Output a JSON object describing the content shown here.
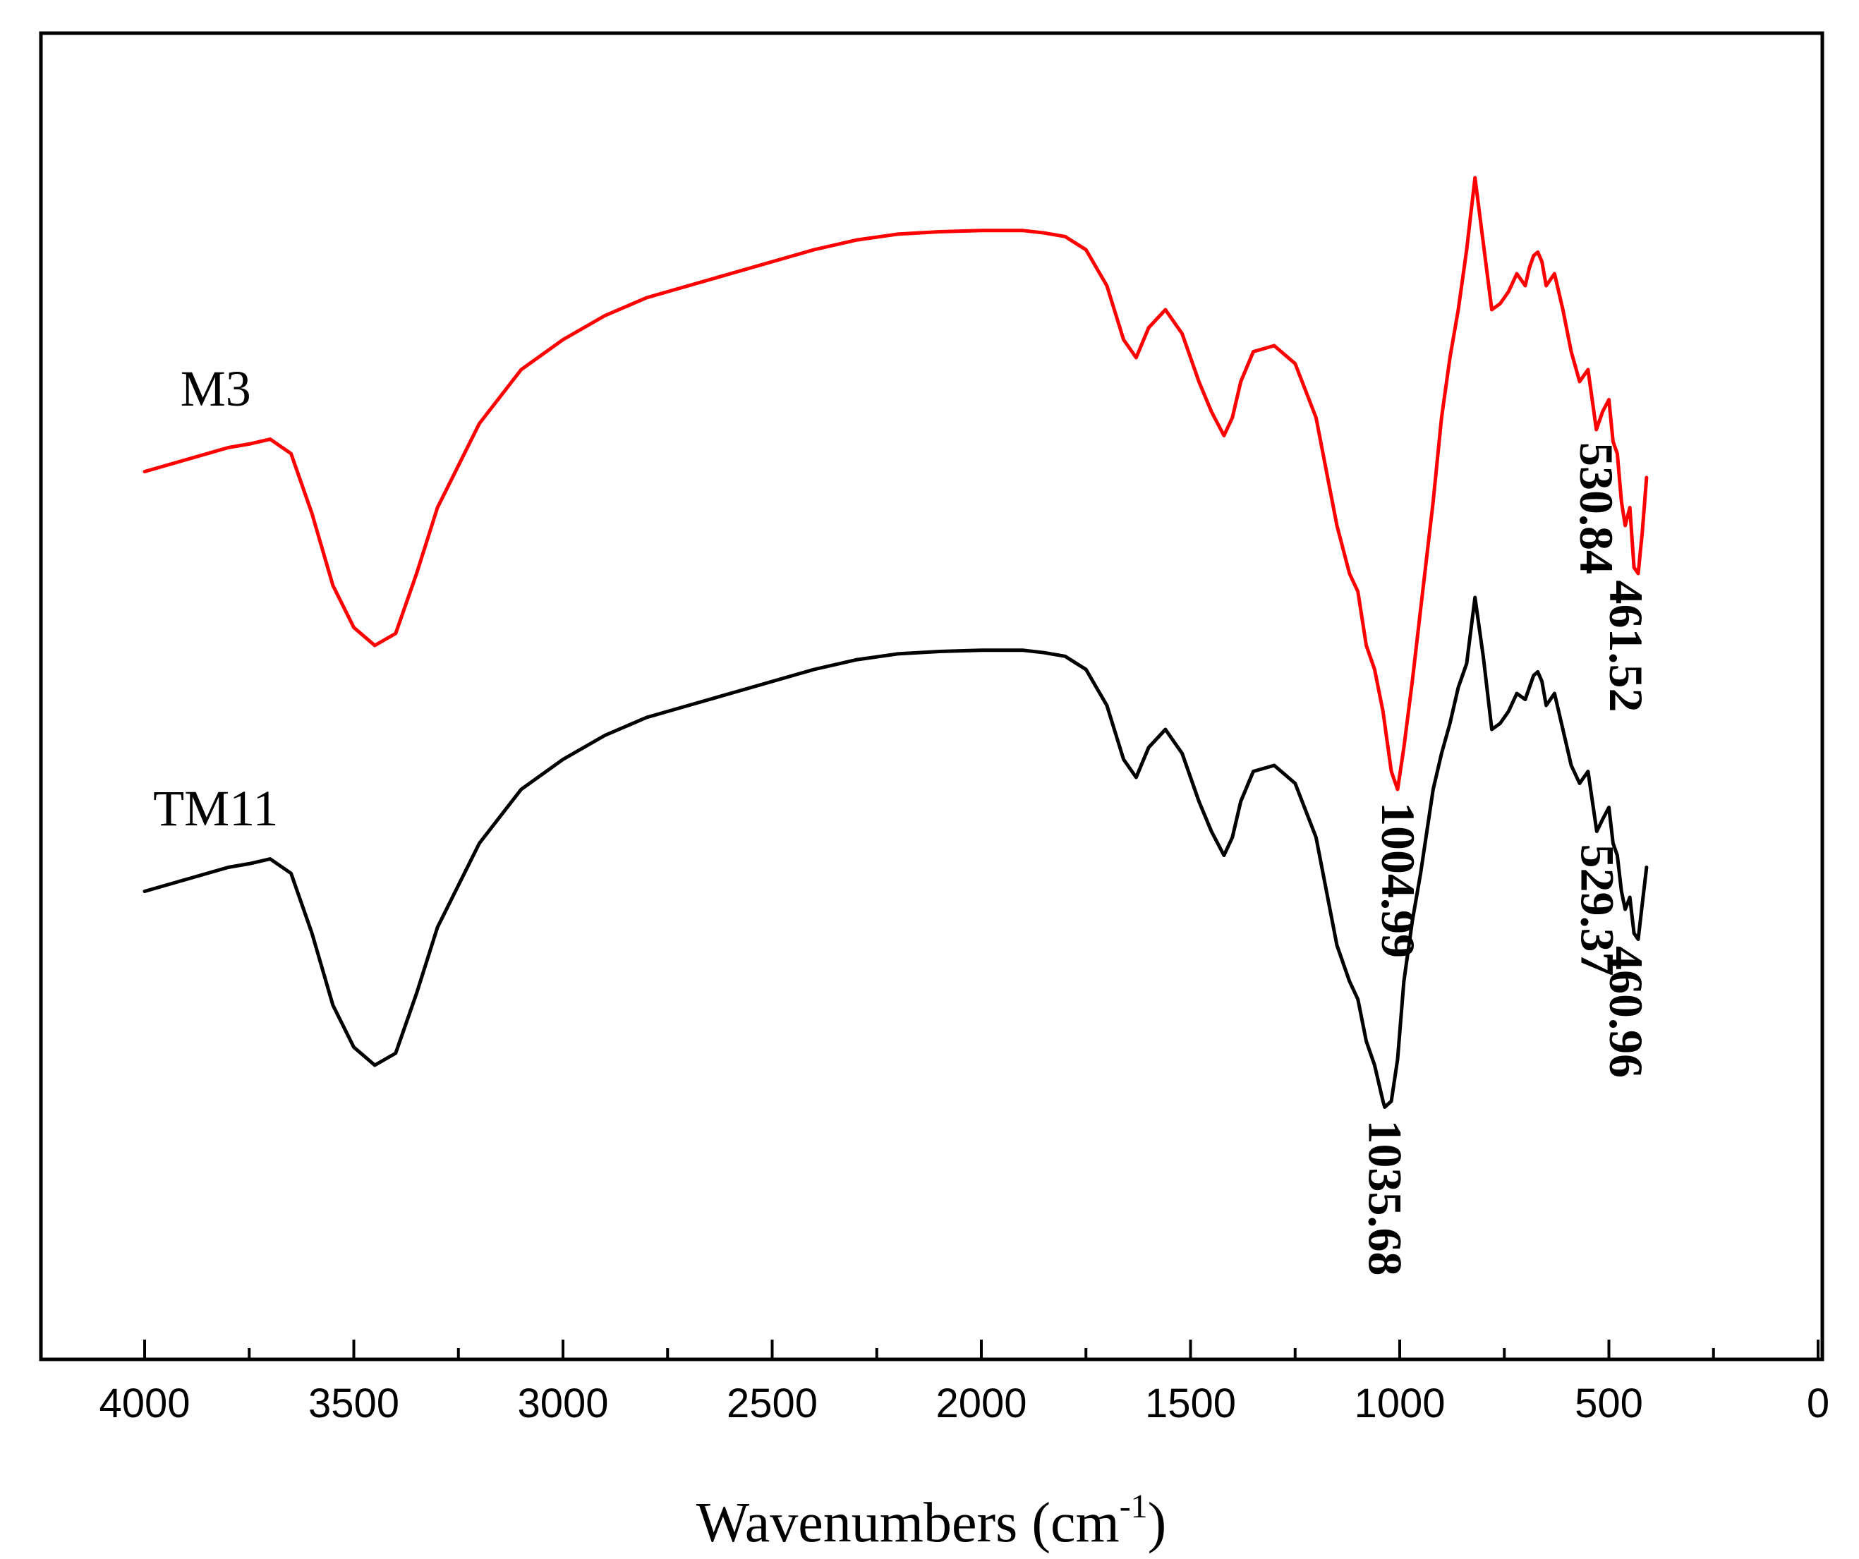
{
  "chart_data": {
    "type": "line",
    "title": "",
    "xlabel": "Wavenumbers (cm",
    "xlabel_sup": "-1",
    "xlabel_close": ")",
    "ylabel": "",
    "xlim": [
      4000,
      0
    ],
    "ylim": [
      0,
      100
    ],
    "x_ticks": [
      "4000",
      "3500",
      "3000",
      "2500",
      "2000",
      "1500",
      "1000",
      "500",
      "0"
    ],
    "series": [
      {
        "name": "M3",
        "color": "#ff0000",
        "x": [
          4000,
          3900,
          3800,
          3750,
          3700,
          3650,
          3600,
          3550,
          3500,
          3450,
          3400,
          3350,
          3300,
          3200,
          3100,
          3000,
          2900,
          2800,
          2700,
          2600,
          2500,
          2400,
          2300,
          2200,
          2100,
          2000,
          1900,
          1850,
          1800,
          1750,
          1700,
          1660,
          1630,
          1600,
          1560,
          1520,
          1480,
          1450,
          1420,
          1400,
          1380,
          1350,
          1300,
          1250,
          1200,
          1150,
          1120,
          1100,
          1080,
          1060,
          1040,
          1020,
          1005,
          990,
          970,
          950,
          920,
          900,
          880,
          860,
          840,
          820,
          800,
          780,
          760,
          740,
          720,
          700,
          690,
          680,
          670,
          660,
          650,
          630,
          610,
          590,
          570,
          550,
          530,
          515,
          500,
          490,
          480,
          470,
          461,
          450,
          440,
          430,
          420,
          410
        ],
        "y": [
          70.5,
          71.5,
          72.5,
          72.8,
          73.2,
          72.0,
          67.0,
          61.0,
          57.5,
          56.0,
          57.0,
          62.0,
          67.5,
          74.5,
          79.0,
          81.5,
          83.5,
          85.0,
          86.0,
          87.0,
          88.0,
          89.0,
          89.8,
          90.3,
          90.5,
          90.6,
          90.6,
          90.4,
          90.1,
          89.0,
          86.0,
          81.5,
          80.0,
          82.5,
          84.0,
          82.0,
          78.0,
          75.5,
          73.5,
          75.0,
          78.0,
          80.5,
          81.0,
          79.5,
          75.0,
          66.0,
          62.0,
          60.5,
          56.0,
          54.0,
          50.5,
          45.5,
          44.0,
          47.5,
          53.0,
          59.0,
          68.0,
          75.0,
          80.0,
          84.0,
          89.0,
          95.0,
          89.5,
          84.0,
          84.5,
          85.5,
          87.0,
          86.0,
          87.5,
          88.5,
          88.8,
          88.0,
          86.0,
          87.0,
          84.0,
          80.5,
          78.0,
          79.0,
          74.0,
          75.5,
          76.5,
          73.0,
          72.0,
          68.0,
          66.0,
          67.5,
          62.5,
          62.0,
          65.5,
          70.0
        ]
      },
      {
        "name": "TM11",
        "color": "#000000",
        "x": [
          4000,
          3900,
          3800,
          3750,
          3700,
          3650,
          3600,
          3550,
          3500,
          3450,
          3400,
          3350,
          3300,
          3200,
          3100,
          3000,
          2900,
          2800,
          2700,
          2600,
          2500,
          2400,
          2300,
          2200,
          2100,
          2000,
          1900,
          1850,
          1800,
          1750,
          1700,
          1660,
          1630,
          1600,
          1560,
          1520,
          1480,
          1450,
          1420,
          1400,
          1380,
          1350,
          1300,
          1250,
          1200,
          1150,
          1120,
          1100,
          1080,
          1060,
          1040,
          1036,
          1020,
          1005,
          990,
          970,
          950,
          920,
          900,
          880,
          860,
          840,
          820,
          800,
          780,
          760,
          740,
          720,
          700,
          690,
          680,
          670,
          660,
          650,
          630,
          610,
          590,
          570,
          550,
          529,
          515,
          500,
          490,
          480,
          470,
          461,
          450,
          440,
          430,
          420,
          410
        ],
        "y": [
          35.5,
          36.5,
          37.5,
          37.8,
          38.2,
          37.0,
          32.0,
          26.0,
          22.5,
          21.0,
          22.0,
          27.0,
          32.5,
          39.5,
          44.0,
          46.5,
          48.5,
          50.0,
          51.0,
          52.0,
          53.0,
          54.0,
          54.8,
          55.3,
          55.5,
          55.6,
          55.6,
          55.4,
          55.1,
          54.0,
          51.0,
          46.5,
          45.0,
          47.5,
          49.0,
          47.0,
          43.0,
          40.5,
          38.5,
          40.0,
          43.0,
          45.5,
          46.0,
          44.5,
          40.0,
          31.0,
          28.0,
          26.5,
          23.0,
          21.0,
          18.0,
          17.5,
          18.0,
          21.5,
          28.0,
          33.0,
          37.0,
          44.0,
          47.0,
          49.5,
          52.5,
          54.5,
          60.0,
          55.0,
          49.0,
          49.5,
          50.5,
          52.0,
          51.5,
          52.5,
          53.5,
          53.8,
          53.0,
          51.0,
          52.0,
          49.0,
          46.0,
          44.5,
          45.5,
          40.5,
          41.5,
          42.5,
          39.5,
          38.5,
          35.5,
          34.0,
          35.0,
          32.0,
          31.5,
          34.5,
          37.5
        ]
      }
    ],
    "series_labels": [
      {
        "series": "M3",
        "text": "M3",
        "at_x": 3830,
        "at_y": 76
      },
      {
        "series": "TM11",
        "text": "TM11",
        "at_x": 3830,
        "at_y": 41
      }
    ],
    "annotations": [
      {
        "series": "M3",
        "text": "1004.99",
        "x": 1005,
        "y": 44.0
      },
      {
        "series": "M3",
        "text": "530.84",
        "x": 531,
        "y": 74.0
      },
      {
        "series": "M3",
        "text": "461.52",
        "x": 460,
        "y": 62.5
      },
      {
        "series": "TM11",
        "text": "1035.68",
        "x": 1036,
        "y": 17.5
      },
      {
        "series": "TM11",
        "text": "529.37",
        "x": 529,
        "y": 40.5
      },
      {
        "series": "TM11",
        "text": "460.96",
        "x": 460,
        "y": 32.0
      }
    ]
  }
}
